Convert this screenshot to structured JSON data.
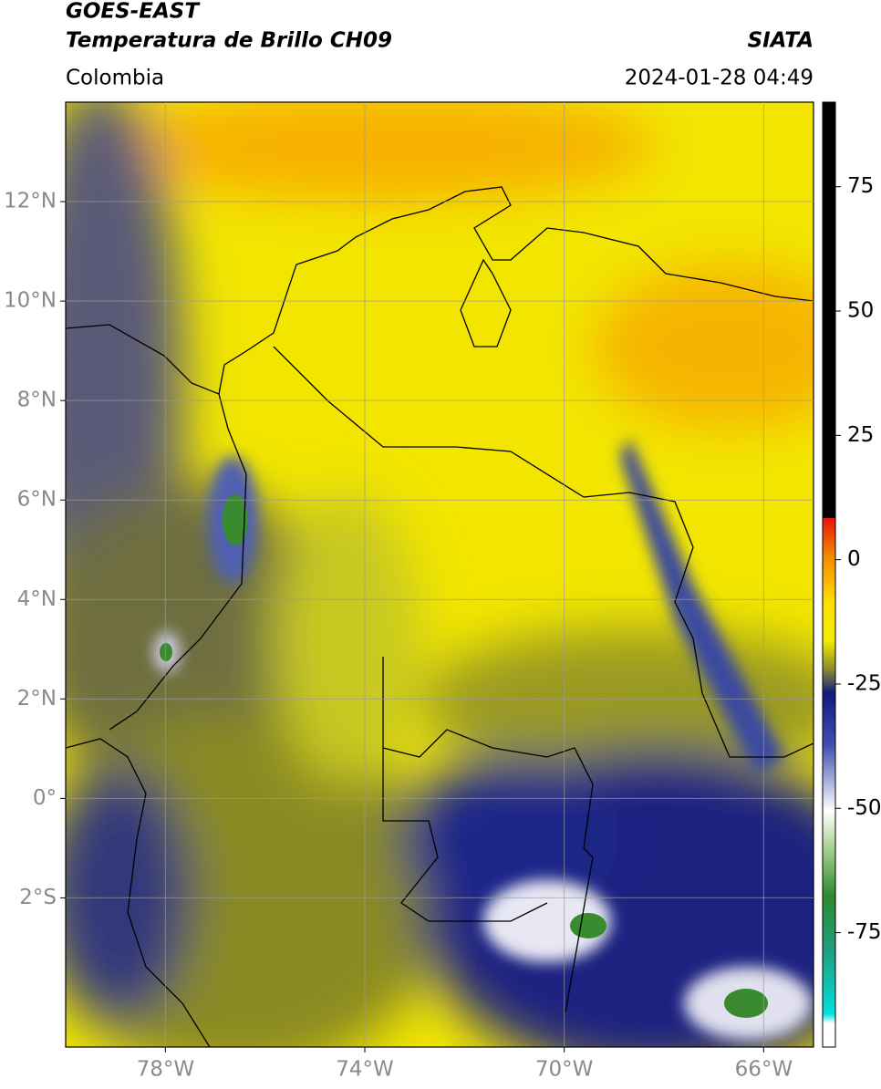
{
  "map": {
    "title": "GOES-EAST",
    "subtitle": "Temperatura de Brillo CH09",
    "source": "SIATA",
    "region": "Colombia",
    "datetime": "2024-01-28 04:49",
    "xlim": [
      -80,
      -65
    ],
    "ylim": [
      -5,
      14
    ],
    "xticks": [
      {
        "value": -78,
        "label": "78°W"
      },
      {
        "value": -74,
        "label": "74°W"
      },
      {
        "value": -70,
        "label": "70°W"
      },
      {
        "value": -66,
        "label": "66°W"
      }
    ],
    "yticks": [
      {
        "value": -2,
        "label": "2°S"
      },
      {
        "value": 0,
        "label": "0°"
      },
      {
        "value": 2,
        "label": "2°N"
      },
      {
        "value": 4,
        "label": "4°N"
      },
      {
        "value": 6,
        "label": "6°N"
      },
      {
        "value": 8,
        "label": "8°N"
      },
      {
        "value": 10,
        "label": "10°N"
      },
      {
        "value": 12,
        "label": "12°N"
      }
    ],
    "grid": true,
    "colorbar": {
      "lim": [
        -98,
        92
      ],
      "ticks": [
        75,
        50,
        25,
        0,
        -25,
        -50,
        -75
      ]
    }
  }
}
